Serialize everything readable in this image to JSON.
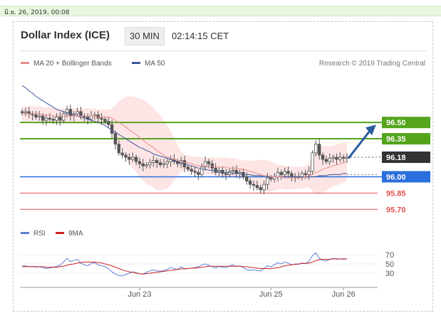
{
  "header": {
    "date_text": "มิ.ย. 26, 2019, 00:08",
    "title": "Dollar Index (ICE)",
    "interval": "30 MIN",
    "time": "02:14:15 CET"
  },
  "legend": {
    "ma20_label": "MA 20 + Bollinger Bands",
    "ma50_label": "MA 50",
    "credit": "Research © 2019 Trading Central",
    "rsi_label": "RSI",
    "rsi_ma_label": "9MA"
  },
  "colors": {
    "ma20": "#e88a8a",
    "ma50": "#3d5a99",
    "band": "#fde5e5",
    "candle": "#555555",
    "resistance": "#54a51c",
    "support_blue": "#2a6fdb",
    "support_red": "#e05050",
    "last_price": "#333333",
    "arrow": "#2b5d9e",
    "rsi": "#5b7fd6",
    "rsi_ma": "#cc2222"
  },
  "chart_data": {
    "type": "candlestick",
    "x_tick_labels": [
      "Jun 23",
      "Jun 25",
      "Jun 26"
    ],
    "ylim": [
      95.61,
      96.94
    ],
    "price_levels": [
      {
        "label": "96.50",
        "value": 96.5,
        "kind": "resistance"
      },
      {
        "label": "96.35",
        "value": 96.35,
        "kind": "resistance"
      },
      {
        "label": "96.18",
        "value": 96.18,
        "kind": "last"
      },
      {
        "label": "96.00",
        "value": 96.0,
        "kind": "pivot"
      },
      {
        "label": "95.85",
        "value": 95.85,
        "kind": "support"
      },
      {
        "label": "95.70",
        "value": 95.7,
        "kind": "support"
      }
    ],
    "close": [
      96.59,
      96.6,
      96.58,
      96.57,
      96.55,
      96.56,
      96.52,
      96.54,
      96.53,
      96.52,
      96.55,
      96.52,
      96.58,
      96.62,
      96.56,
      96.58,
      96.6,
      96.56,
      96.55,
      96.53,
      96.56,
      96.57,
      96.54,
      96.53,
      96.51,
      96.48,
      96.4,
      96.3,
      96.22,
      96.2,
      96.18,
      96.16,
      96.18,
      96.14,
      96.12,
      96.1,
      96.11,
      96.13,
      96.15,
      96.13,
      96.11,
      96.12,
      96.14,
      96.16,
      96.14,
      96.12,
      96.15,
      96.09,
      96.07,
      96.05,
      96.04,
      96.02,
      96.09,
      96.14,
      96.12,
      96.08,
      96.04,
      96.06,
      96.03,
      96.02,
      96.05,
      96.06,
      96.03,
      96.04,
      96.0,
      95.96,
      95.93,
      95.92,
      95.9,
      95.88,
      95.93,
      95.99,
      95.98,
      96.0,
      96.04,
      96.02,
      96.05,
      96.03,
      96.0,
      96.0,
      96.0,
      96.03,
      96.02,
      96.05,
      96.22,
      96.3,
      96.2,
      96.16,
      96.14,
      96.17,
      96.18,
      96.16,
      96.18,
      96.17,
      96.18
    ],
    "ma20": [
      96.58,
      96.58,
      96.58,
      96.58,
      96.58,
      96.58,
      96.57,
      96.57,
      96.57,
      96.56,
      96.56,
      96.56,
      96.56,
      96.56,
      96.56,
      96.56,
      96.56,
      96.56,
      96.56,
      96.56,
      96.56,
      96.56,
      96.55,
      96.55,
      96.55,
      96.55,
      96.54,
      96.52,
      96.5,
      96.48,
      96.46,
      96.43,
      96.41,
      96.39,
      96.36,
      96.34,
      96.31,
      96.29,
      96.27,
      96.24,
      96.22,
      96.2,
      96.18,
      96.17,
      96.16,
      96.15,
      96.14,
      96.13,
      96.13,
      96.12,
      96.11,
      96.1,
      96.1,
      96.1,
      96.1,
      96.1,
      96.09,
      96.09,
      96.09,
      96.09,
      96.08,
      96.08,
      96.08,
      96.07,
      96.07,
      96.06,
      96.05,
      96.04,
      96.03,
      96.02,
      96.01,
      96.01,
      96.0,
      96.0,
      96.0,
      96.0,
      95.99,
      95.99,
      95.99,
      95.99,
      95.99,
      95.99,
      96.0,
      96.01,
      96.02,
      96.04,
      96.05,
      96.07,
      96.08,
      96.09,
      96.1,
      96.11,
      96.12,
      96.13,
      96.14
    ],
    "ma50": [
      96.84,
      96.82,
      96.79,
      96.77,
      96.74,
      96.72,
      96.7,
      96.68,
      96.66,
      96.64,
      96.62,
      96.61,
      96.6,
      96.59,
      96.58,
      96.57,
      96.56,
      96.55,
      96.54,
      96.53,
      96.52,
      96.51,
      96.5,
      96.49,
      96.47,
      96.45,
      96.43,
      96.41,
      96.39,
      96.37,
      96.35,
      96.33,
      96.31,
      96.29,
      96.27,
      96.26,
      96.24,
      96.23,
      96.21,
      96.2,
      96.19,
      96.18,
      96.17,
      96.16,
      96.15,
      96.14,
      96.13,
      96.12,
      96.11,
      96.1,
      96.09,
      96.08,
      96.07,
      96.07,
      96.06,
      96.06,
      96.05,
      96.05,
      96.04,
      96.04,
      96.04,
      96.03,
      96.03,
      96.03,
      96.02,
      96.02,
      96.02,
      96.01,
      96.01,
      96.01,
      96.0,
      96.0,
      96.0,
      96.0,
      96.0,
      96.0,
      96.0,
      96.0,
      96.0,
      96.0,
      96.0,
      96.0,
      96.0,
      96.0,
      96.0,
      96.0,
      96.01,
      96.01,
      96.01,
      96.02,
      96.02,
      96.02,
      96.02,
      96.03,
      96.03
    ],
    "rsi": {
      "y_tick_labels": [
        "70",
        "50",
        "30"
      ],
      "ylim": [
        10,
        90
      ],
      "levels": [
        70,
        50,
        30
      ],
      "values": [
        45,
        46,
        44,
        45,
        43,
        44,
        42,
        40,
        41,
        43,
        45,
        47,
        54,
        62,
        55,
        58,
        60,
        52,
        48,
        46,
        51,
        53,
        48,
        46,
        44,
        40,
        33,
        28,
        25,
        24,
        27,
        30,
        33,
        31,
        29,
        28,
        32,
        35,
        37,
        35,
        34,
        36,
        38,
        42,
        40,
        38,
        44,
        39,
        40,
        41,
        42,
        44,
        48,
        50,
        47,
        44,
        41,
        45,
        43,
        42,
        46,
        48,
        44,
        46,
        42,
        38,
        36,
        37,
        36,
        35,
        40,
        46,
        44,
        48,
        53,
        50,
        54,
        52,
        48,
        50,
        49,
        52,
        51,
        56,
        68,
        74,
        62,
        58,
        56,
        60,
        62,
        60,
        61,
        60,
        61
      ],
      "ma9": [
        44,
        44,
        44,
        44,
        44,
        44,
        44,
        43,
        43,
        43,
        43,
        44,
        45,
        47,
        49,
        50,
        52,
        53,
        54,
        54,
        54,
        54,
        53,
        52,
        50,
        48,
        46,
        43,
        40,
        37,
        35,
        33,
        32,
        30,
        29,
        28,
        29,
        30,
        31,
        32,
        33,
        34,
        35,
        36,
        37,
        38,
        39,
        40,
        40,
        41,
        41,
        42,
        43,
        44,
        45,
        45,
        45,
        45,
        45,
        45,
        45,
        45,
        45,
        45,
        44,
        44,
        43,
        42,
        41,
        40,
        40,
        40,
        40,
        41,
        42,
        44,
        46,
        47,
        48,
        49,
        50,
        51,
        51,
        52,
        54,
        57,
        59,
        60,
        60,
        60,
        61,
        61,
        61,
        61,
        61
      ]
    }
  }
}
